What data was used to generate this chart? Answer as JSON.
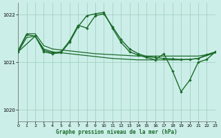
{
  "title": "Graphe pression niveau de la mer (hPa)",
  "background_color": "#cceee8",
  "grid_color": "#99ccbb",
  "line_color": "#1a6b2a",
  "ylim": [
    1019.75,
    1022.25
  ],
  "yticks": [
    1020,
    1021,
    1022
  ],
  "xlim": [
    0,
    23
  ],
  "xticks": [
    0,
    1,
    2,
    3,
    4,
    5,
    6,
    7,
    8,
    9,
    10,
    11,
    12,
    13,
    14,
    15,
    16,
    17,
    18,
    19,
    20,
    21,
    22,
    23
  ],
  "series": [
    {
      "x": [
        0,
        1,
        2,
        3,
        4,
        5,
        6,
        7,
        8,
        9,
        10,
        11,
        12,
        13,
        14,
        15,
        16,
        17,
        18,
        19,
        20,
        21,
        22,
        23
      ],
      "y": [
        1021.25,
        1021.6,
        1021.6,
        1021.35,
        1021.28,
        1021.26,
        1021.24,
        1021.22,
        1021.2,
        1021.18,
        1021.17,
        1021.16,
        1021.15,
        1021.14,
        1021.13,
        1021.13,
        1021.13,
        1021.13,
        1021.13,
        1021.13,
        1021.13,
        1021.13,
        1021.16,
        1021.2
      ],
      "markers": false,
      "lw": 0.9
    },
    {
      "x": [
        0,
        1,
        2,
        3,
        4,
        5,
        6,
        7,
        8,
        9,
        10,
        11,
        12,
        13,
        14,
        15,
        16,
        17,
        18,
        19,
        20,
        21,
        22,
        23
      ],
      "y": [
        1021.22,
        1021.52,
        1021.55,
        1021.28,
        1021.22,
        1021.2,
        1021.18,
        1021.16,
        1021.14,
        1021.12,
        1021.1,
        1021.08,
        1021.07,
        1021.06,
        1021.05,
        1021.05,
        1021.05,
        1021.05,
        1021.05,
        1021.05,
        1021.06,
        1021.08,
        1021.14,
        1021.2
      ],
      "markers": false,
      "lw": 0.9
    },
    {
      "x": [
        0,
        1,
        2,
        3,
        4,
        5,
        6,
        7,
        8,
        9,
        10,
        11,
        12,
        13,
        14,
        15,
        16,
        17,
        18,
        19,
        20,
        21,
        22,
        23
      ],
      "y": [
        1021.22,
        1021.58,
        1021.55,
        1021.25,
        1021.2,
        1021.22,
        1021.45,
        1021.78,
        1021.72,
        1021.98,
        1022.02,
        1021.75,
        1021.48,
        1021.28,
        1021.18,
        1021.12,
        1021.1,
        1021.08,
        1021.07,
        1021.06,
        1021.06,
        1021.08,
        1021.16,
        1021.22
      ],
      "markers": true,
      "lw": 1.0
    },
    {
      "x": [
        0,
        2,
        3,
        4,
        5,
        6,
        7,
        8,
        9,
        10,
        11,
        12,
        13,
        14,
        15,
        16,
        17,
        18,
        19,
        20,
        21,
        22,
        23
      ],
      "y": [
        1021.22,
        1021.55,
        1021.22,
        1021.18,
        1021.2,
        1021.42,
        1021.75,
        1021.98,
        1022.02,
        1022.05,
        1021.72,
        1021.42,
        1021.22,
        1021.15,
        1021.1,
        1021.05,
        1021.18,
        1020.82,
        1020.38,
        1020.62,
        1021.0,
        1021.06,
        1021.22
      ],
      "markers": true,
      "lw": 1.0
    }
  ]
}
